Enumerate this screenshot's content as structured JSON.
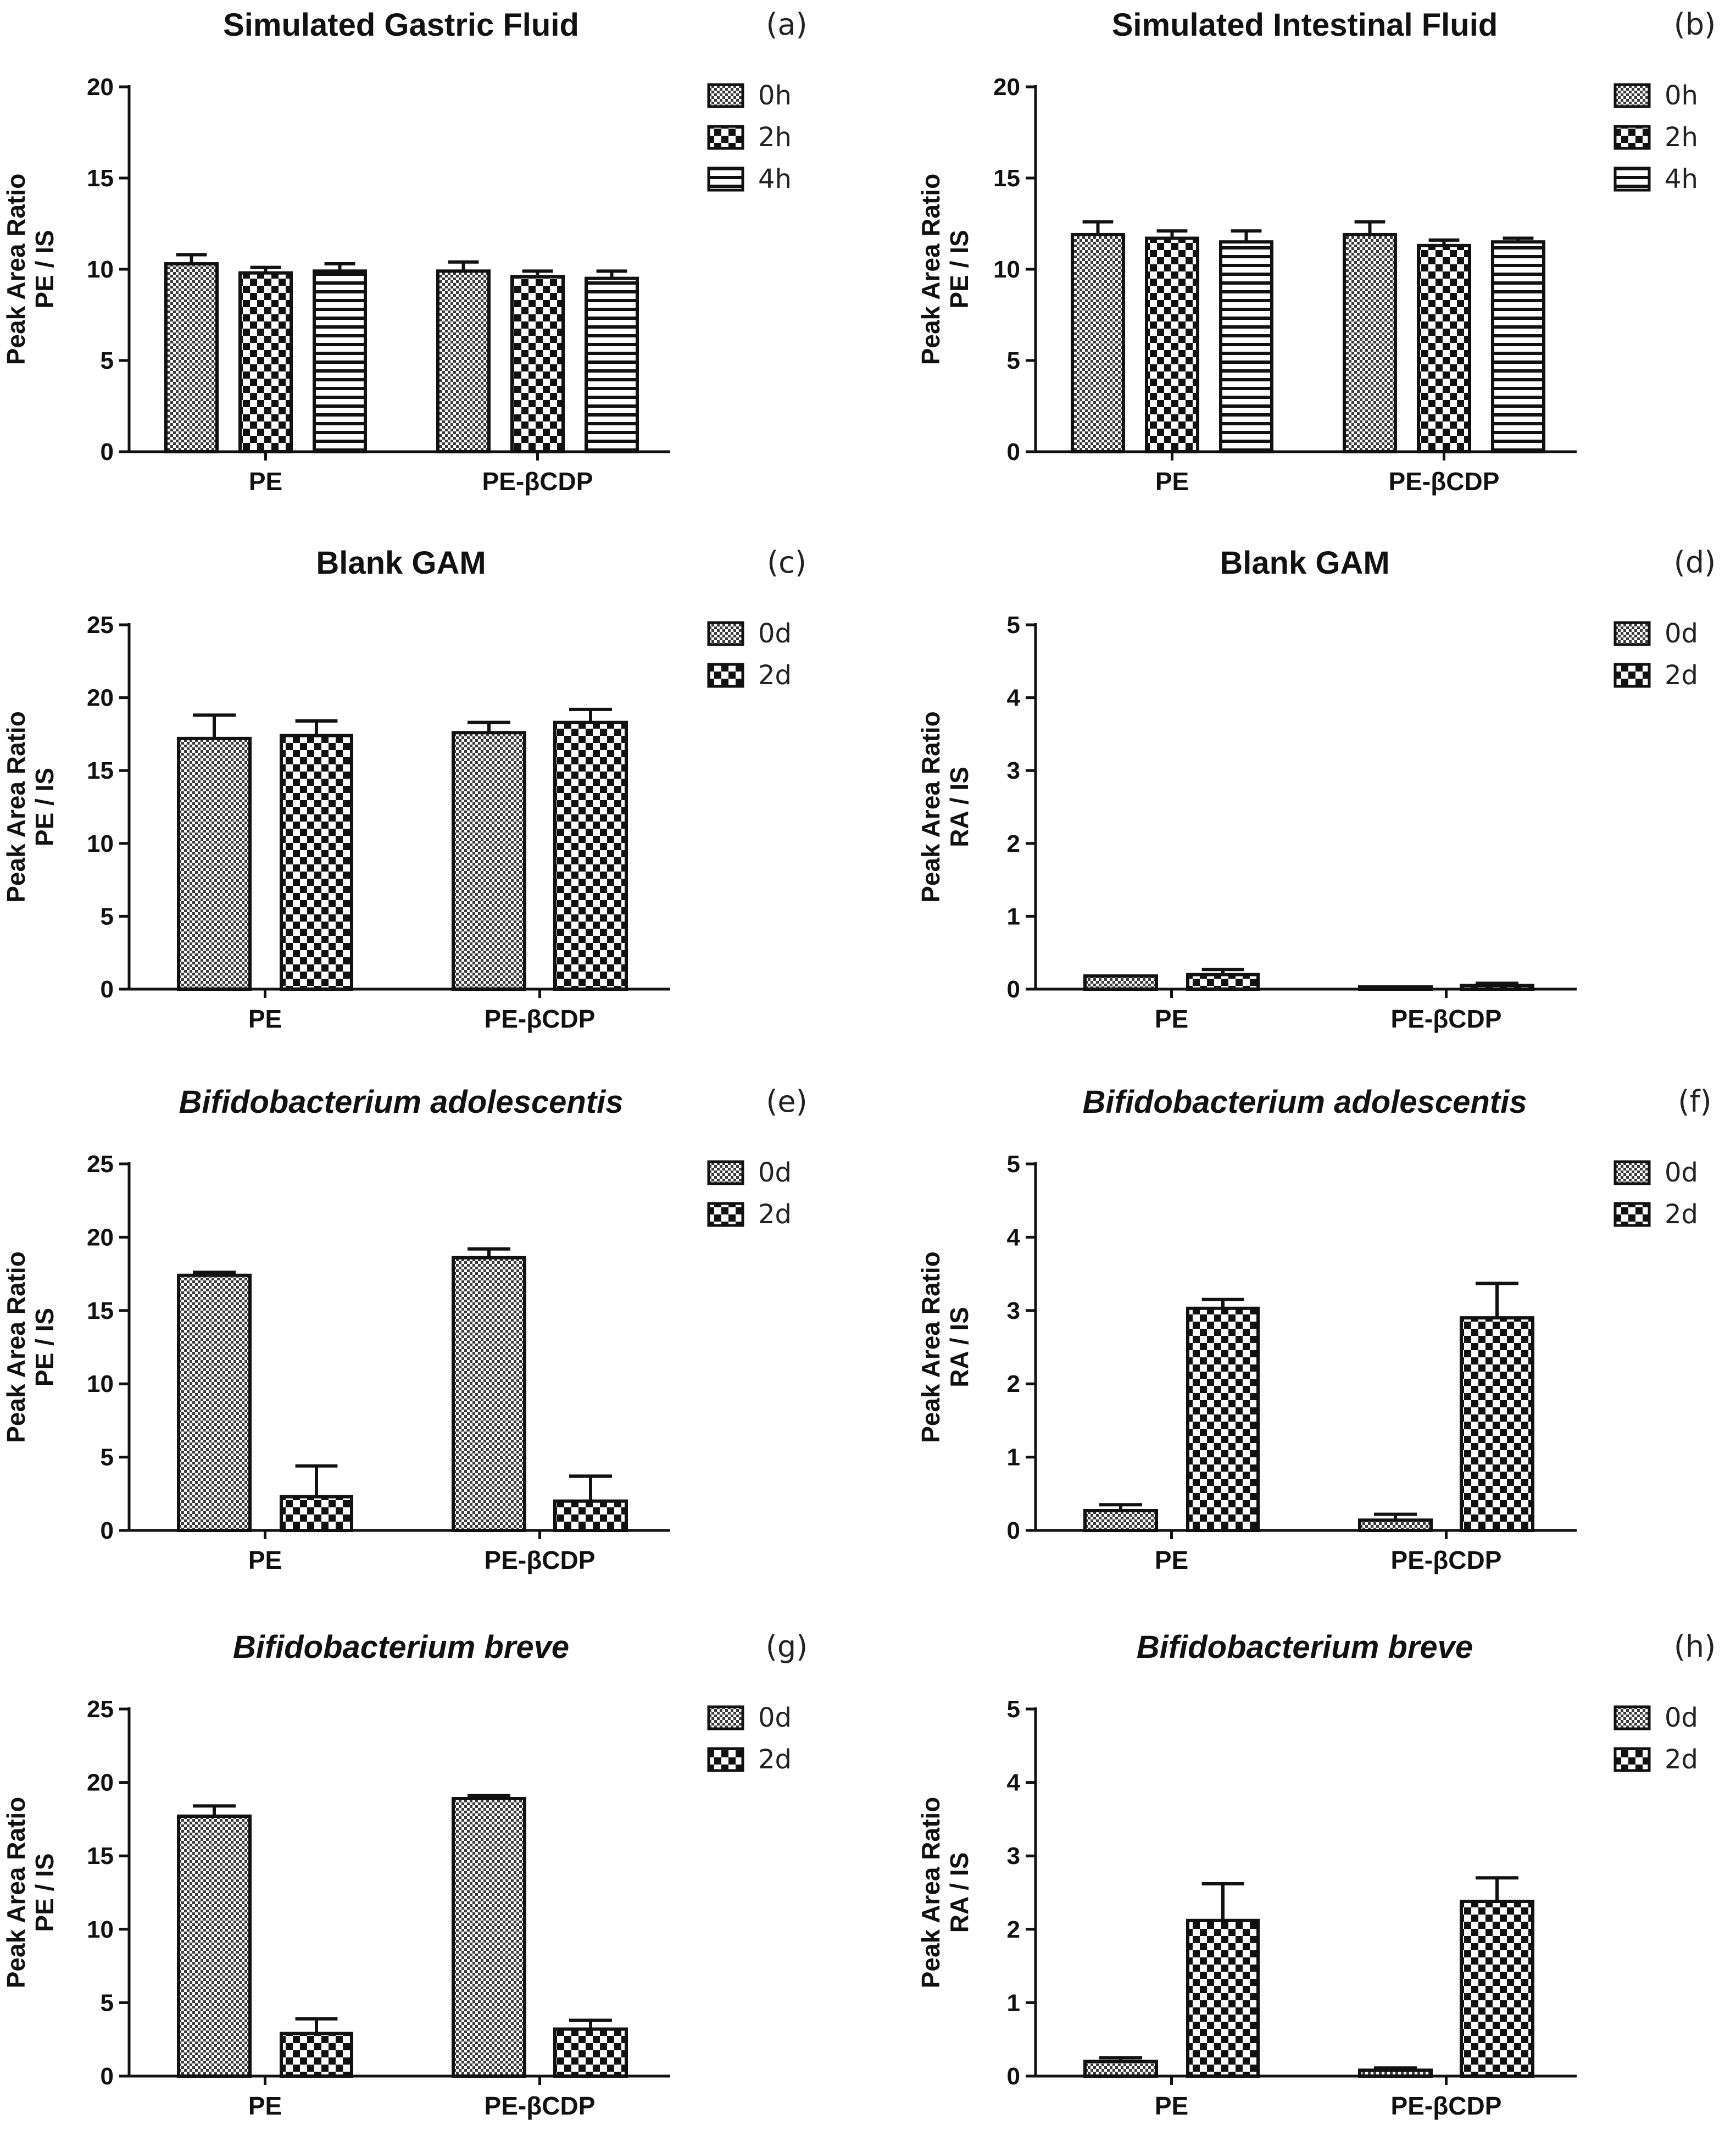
{
  "figure": {
    "panels": [
      {
        "label": "(a)"
      },
      {
        "label": "(b)"
      },
      {
        "label": "(c)"
      },
      {
        "label": "(d)"
      },
      {
        "label": "(e)"
      },
      {
        "label": "(f)"
      },
      {
        "label": "(g)"
      },
      {
        "label": "(h)"
      }
    ]
  },
  "colors": {
    "ink": "#111111",
    "background": "#ffffff"
  },
  "chart_data": [
    {
      "type": "bar",
      "title": "Simulated Gastric Fluid",
      "title_italic": false,
      "panel": "(a)",
      "ylabel_lines": [
        "Peak Area Ratio",
        "PE / IS"
      ],
      "categories": [
        "PE",
        "PE-βCDP"
      ],
      "ylim": [
        0,
        20
      ],
      "yticks": [
        "0",
        "5",
        "10",
        "15",
        "20"
      ],
      "legend_position": "right",
      "series": [
        {
          "name": "0h",
          "pattern": "fine",
          "values": [
            10.3,
            9.9
          ],
          "errors": [
            0.5,
            0.5
          ]
        },
        {
          "name": "2h",
          "pattern": "checker",
          "values": [
            9.8,
            9.6
          ],
          "errors": [
            0.3,
            0.3
          ]
        },
        {
          "name": "4h",
          "pattern": "hstripe",
          "values": [
            9.9,
            9.5
          ],
          "errors": [
            0.4,
            0.4
          ]
        }
      ]
    },
    {
      "type": "bar",
      "title": "Simulated Intestinal Fluid",
      "title_italic": false,
      "panel": "(b)",
      "ylabel_lines": [
        "Peak Area Ratio",
        "PE / IS"
      ],
      "categories": [
        "PE",
        "PE-βCDP"
      ],
      "ylim": [
        0,
        20
      ],
      "yticks": [
        "0",
        "5",
        "10",
        "15",
        "20"
      ],
      "legend_position": "right",
      "series": [
        {
          "name": "0h",
          "pattern": "fine",
          "values": [
            11.9,
            11.9
          ],
          "errors": [
            0.7,
            0.7
          ]
        },
        {
          "name": "2h",
          "pattern": "checker",
          "values": [
            11.7,
            11.3
          ],
          "errors": [
            0.4,
            0.3
          ]
        },
        {
          "name": "4h",
          "pattern": "hstripe",
          "values": [
            11.5,
            11.5
          ],
          "errors": [
            0.6,
            0.2
          ]
        }
      ]
    },
    {
      "type": "bar",
      "title": "Blank GAM",
      "title_italic": false,
      "panel": "(c)",
      "ylabel_lines": [
        "Peak Area Ratio",
        "PE / IS"
      ],
      "categories": [
        "PE",
        "PE-βCDP"
      ],
      "ylim": [
        0,
        25
      ],
      "yticks": [
        "0",
        "5",
        "10",
        "15",
        "20",
        "25"
      ],
      "legend_position": "right",
      "series": [
        {
          "name": "0d",
          "pattern": "fine",
          "values": [
            17.2,
            17.6
          ],
          "errors": [
            1.6,
            0.7
          ]
        },
        {
          "name": "2d",
          "pattern": "checker",
          "values": [
            17.4,
            18.3
          ],
          "errors": [
            1.0,
            0.9
          ]
        }
      ]
    },
    {
      "type": "bar",
      "title": "Blank GAM",
      "title_italic": false,
      "panel": "(d)",
      "ylabel_lines": [
        "Peak Area Ratio",
        "RA / IS"
      ],
      "categories": [
        "PE",
        "PE-βCDP"
      ],
      "ylim": [
        0,
        5
      ],
      "yticks": [
        "0",
        "1",
        "2",
        "3",
        "4",
        "5"
      ],
      "legend_position": "right",
      "series": [
        {
          "name": "0d",
          "pattern": "fine",
          "values": [
            0.18,
            0.02
          ],
          "errors": [
            0.0,
            0.0
          ]
        },
        {
          "name": "2d",
          "pattern": "checker",
          "values": [
            0.2,
            0.05
          ],
          "errors": [
            0.07,
            0.03
          ]
        }
      ]
    },
    {
      "type": "bar",
      "title": "Bifidobacterium adolescentis",
      "title_italic": true,
      "panel": "(e)",
      "ylabel_lines": [
        "Peak Area Ratio",
        "PE / IS"
      ],
      "categories": [
        "PE",
        "PE-βCDP"
      ],
      "ylim": [
        0,
        25
      ],
      "yticks": [
        "0",
        "5",
        "10",
        "15",
        "20",
        "25"
      ],
      "legend_position": "right",
      "series": [
        {
          "name": "0d",
          "pattern": "fine",
          "values": [
            17.4,
            18.6
          ],
          "errors": [
            0.2,
            0.6
          ]
        },
        {
          "name": "2d",
          "pattern": "checker",
          "values": [
            2.3,
            2.0
          ],
          "errors": [
            2.1,
            1.7
          ]
        }
      ]
    },
    {
      "type": "bar",
      "title": "Bifidobacterium adolescentis",
      "title_italic": true,
      "panel": "(f)",
      "ylabel_lines": [
        "Peak Area Ratio",
        "RA / IS"
      ],
      "categories": [
        "PE",
        "PE-βCDP"
      ],
      "ylim": [
        0,
        5
      ],
      "yticks": [
        "0",
        "1",
        "2",
        "3",
        "4",
        "5"
      ],
      "legend_position": "right",
      "series": [
        {
          "name": "0d",
          "pattern": "fine",
          "values": [
            0.27,
            0.14
          ],
          "errors": [
            0.08,
            0.08
          ]
        },
        {
          "name": "2d",
          "pattern": "checker",
          "values": [
            3.03,
            2.9
          ],
          "errors": [
            0.12,
            0.47
          ]
        }
      ]
    },
    {
      "type": "bar",
      "title": "Bifidobacterium breve",
      "title_italic": true,
      "panel": "(g)",
      "ylabel_lines": [
        "Peak Area Ratio",
        "PE / IS"
      ],
      "categories": [
        "PE",
        "PE-βCDP"
      ],
      "ylim": [
        0,
        25
      ],
      "yticks": [
        "0",
        "5",
        "10",
        "15",
        "20",
        "25"
      ],
      "legend_position": "right",
      "series": [
        {
          "name": "0d",
          "pattern": "fine",
          "values": [
            17.7,
            18.9
          ],
          "errors": [
            0.7,
            0.2
          ]
        },
        {
          "name": "2d",
          "pattern": "checker",
          "values": [
            2.9,
            3.2
          ],
          "errors": [
            1.0,
            0.6
          ]
        }
      ]
    },
    {
      "type": "bar",
      "title": "Bifidobacterium breve",
      "title_italic": true,
      "panel": "(h)",
      "ylabel_lines": [
        "Peak Area Ratio",
        "RA / IS"
      ],
      "categories": [
        "PE",
        "PE-βCDP"
      ],
      "ylim": [
        0,
        5
      ],
      "yticks": [
        "0",
        "1",
        "2",
        "3",
        "4",
        "5"
      ],
      "legend_position": "right",
      "series": [
        {
          "name": "0d",
          "pattern": "fine",
          "values": [
            0.2,
            0.08
          ],
          "errors": [
            0.05,
            0.03
          ]
        },
        {
          "name": "2d",
          "pattern": "checker",
          "values": [
            2.12,
            2.38
          ],
          "errors": [
            0.5,
            0.32
          ]
        }
      ]
    }
  ]
}
